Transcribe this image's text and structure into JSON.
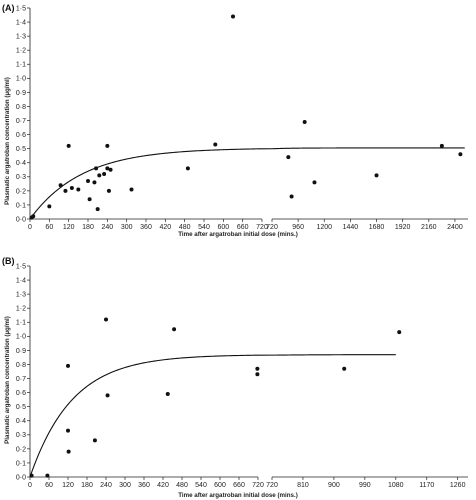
{
  "chart_data": [
    {
      "panel_label": "(A)",
      "type": "scatter",
      "xlabel": "Time after argatroban initial dose (mins.)",
      "ylabel": "Plasmatic argatroban concentration (µg/ml)",
      "y_ticks": [
        "0·0",
        "0·1",
        "0·2",
        "0·3",
        "0·4",
        "0·5",
        "0·6",
        "0·7",
        "0·8",
        "0·9",
        "1·0",
        "1·1",
        "1·2",
        "1·3",
        "1·4",
        "1·5"
      ],
      "ylim": [
        0,
        1.5
      ],
      "x_segments": [
        {
          "range": [
            0,
            720
          ],
          "ticks": [
            "0",
            "60",
            "120",
            "180",
            "240",
            "300",
            "360",
            "420",
            "480",
            "540",
            "600",
            "660",
            "720"
          ]
        },
        {
          "range": [
            720,
            2520
          ],
          "ticks": [
            "720",
            "960",
            "1200",
            "1440",
            "1680",
            "1920",
            "2160",
            "2400"
          ]
        }
      ],
      "points": [
        {
          "x": 5,
          "y": 0.01
        },
        {
          "x": 10,
          "y": 0.02
        },
        {
          "x": 60,
          "y": 0.09
        },
        {
          "x": 95,
          "y": 0.24
        },
        {
          "x": 110,
          "y": 0.2
        },
        {
          "x": 120,
          "y": 0.52
        },
        {
          "x": 130,
          "y": 0.22
        },
        {
          "x": 150,
          "y": 0.21
        },
        {
          "x": 180,
          "y": 0.27
        },
        {
          "x": 185,
          "y": 0.14
        },
        {
          "x": 200,
          "y": 0.26
        },
        {
          "x": 205,
          "y": 0.36
        },
        {
          "x": 210,
          "y": 0.07
        },
        {
          "x": 215,
          "y": 0.31
        },
        {
          "x": 230,
          "y": 0.32
        },
        {
          "x": 240,
          "y": 0.52
        },
        {
          "x": 240,
          "y": 0.36
        },
        {
          "x": 245,
          "y": 0.2
        },
        {
          "x": 250,
          "y": 0.35
        },
        {
          "x": 315,
          "y": 0.21
        },
        {
          "x": 490,
          "y": 0.36
        },
        {
          "x": 575,
          "y": 0.53
        },
        {
          "x": 630,
          "y": 1.44
        },
        {
          "x": 870,
          "y": 0.44
        },
        {
          "x": 900,
          "y": 0.16
        },
        {
          "x": 1020,
          "y": 0.69
        },
        {
          "x": 1110,
          "y": 0.26
        },
        {
          "x": 1680,
          "y": 0.31
        },
        {
          "x": 2280,
          "y": 0.52
        },
        {
          "x": 2450,
          "y": 0.46
        }
      ],
      "fit_curve": {
        "model": "asymptotic",
        "plateau": 0.505,
        "k": 0.0062
      }
    },
    {
      "panel_label": "(B)",
      "type": "scatter",
      "xlabel": "Time after argatroban initial dose (mins.)",
      "ylabel": "Plasmatic argatroban concentration (µg/ml)",
      "y_ticks": [
        "0·0",
        "0·1",
        "0·2",
        "0·3",
        "0·4",
        "0·5",
        "0·6",
        "0·7",
        "0·8",
        "0·9",
        "1·0",
        "1·1",
        "1·2",
        "1·3",
        "1·4",
        "1·5"
      ],
      "ylim": [
        0,
        1.5
      ],
      "x_segments": [
        {
          "range": [
            0,
            720
          ],
          "ticks": [
            "0",
            "60",
            "120",
            "180",
            "240",
            "300",
            "360",
            "420",
            "480",
            "540",
            "600",
            "660",
            "720"
          ]
        },
        {
          "range": [
            720,
            1290
          ],
          "ticks": [
            "720",
            "810",
            "900",
            "990",
            "1080",
            "1170",
            "1260"
          ]
        }
      ],
      "points": [
        {
          "x": 5,
          "y": 0.01
        },
        {
          "x": 55,
          "y": 0.01
        },
        {
          "x": 120,
          "y": 0.79
        },
        {
          "x": 120,
          "y": 0.33
        },
        {
          "x": 122,
          "y": 0.18
        },
        {
          "x": 205,
          "y": 0.26
        },
        {
          "x": 240,
          "y": 1.12
        },
        {
          "x": 245,
          "y": 0.58
        },
        {
          "x": 435,
          "y": 0.59
        },
        {
          "x": 455,
          "y": 1.05
        },
        {
          "x": 718,
          "y": 0.77
        },
        {
          "x": 718,
          "y": 0.73
        },
        {
          "x": 930,
          "y": 0.77
        },
        {
          "x": 1090,
          "y": 1.03
        }
      ],
      "fit_curve": {
        "model": "asymptotic",
        "plateau": 0.87,
        "k": 0.0075
      }
    }
  ]
}
